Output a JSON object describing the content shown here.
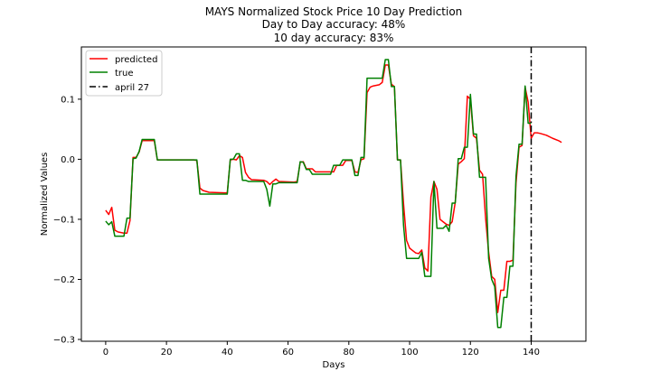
{
  "chart_data": {
    "type": "line",
    "title": [
      "MAYS Normalized Stock Price 10 Day Prediction",
      "Day to Day accuracy: 48%",
      "10 day accuracy: 83%"
    ],
    "xlabel": "Days",
    "ylabel": "Normalized Values",
    "xlim": [
      -8,
      158
    ],
    "ylim": [
      -0.303,
      0.187
    ],
    "xticks": [
      0,
      20,
      40,
      60,
      80,
      100,
      120,
      140
    ],
    "xtick_labels": [
      "0",
      "20",
      "40",
      "60",
      "80",
      "100",
      "120",
      "140"
    ],
    "yticks": [
      -0.3,
      -0.2,
      -0.1,
      0.0,
      0.1
    ],
    "ytick_labels": [
      "−0.3",
      "−0.2",
      "−0.1",
      "0.0",
      "0.1"
    ],
    "legend_position": "top-left",
    "series": [
      {
        "name": "predicted",
        "color": "#ff0000",
        "style": "solid",
        "points": [
          [
            0,
            -0.085
          ],
          [
            1,
            -0.092
          ],
          [
            2,
            -0.08
          ],
          [
            3,
            -0.118
          ],
          [
            4,
            -0.121
          ],
          [
            6,
            -0.123
          ],
          [
            7,
            -0.123
          ],
          [
            8,
            -0.102
          ],
          [
            9,
            0.003
          ],
          [
            10,
            0.003
          ],
          [
            11,
            0.012
          ],
          [
            12,
            0.031
          ],
          [
            16,
            0.031
          ],
          [
            17,
            -0.001
          ],
          [
            29,
            -0.001
          ],
          [
            30,
            -0.002
          ],
          [
            31,
            -0.048
          ],
          [
            32,
            -0.052
          ],
          [
            34,
            -0.055
          ],
          [
            39,
            -0.056
          ],
          [
            40,
            -0.056
          ],
          [
            41,
            -0.001
          ],
          [
            42,
            0.0
          ],
          [
            43,
            -0.001
          ],
          [
            44,
            0.006
          ],
          [
            45,
            0.003
          ],
          [
            46,
            -0.022
          ],
          [
            47,
            -0.03
          ],
          [
            48,
            -0.034
          ],
          [
            52,
            -0.035
          ],
          [
            53,
            -0.037
          ],
          [
            54,
            -0.042
          ],
          [
            55,
            -0.037
          ],
          [
            56,
            -0.033
          ],
          [
            57,
            -0.037
          ],
          [
            62,
            -0.038
          ],
          [
            63,
            -0.037
          ],
          [
            64,
            -0.005
          ],
          [
            65,
            -0.004
          ],
          [
            66,
            -0.016
          ],
          [
            68,
            -0.016
          ],
          [
            69,
            -0.021
          ],
          [
            75,
            -0.021
          ],
          [
            76,
            -0.01
          ],
          [
            78,
            -0.01
          ],
          [
            79,
            -0.002
          ],
          [
            81,
            -0.002
          ],
          [
            82,
            -0.021
          ],
          [
            83,
            -0.022
          ],
          [
            84,
            -0.001
          ],
          [
            85,
            0.001
          ],
          [
            86,
            0.111
          ],
          [
            87,
            0.12
          ],
          [
            88,
            0.122
          ],
          [
            90,
            0.124
          ],
          [
            91,
            0.128
          ],
          [
            92,
            0.157
          ],
          [
            93,
            0.157
          ],
          [
            94,
            0.125
          ],
          [
            95,
            0.121
          ],
          [
            96,
            -0.001
          ],
          [
            97,
            -0.001
          ],
          [
            98,
            -0.074
          ],
          [
            99,
            -0.135
          ],
          [
            100,
            -0.148
          ],
          [
            101,
            -0.152
          ],
          [
            102,
            -0.156
          ],
          [
            103,
            -0.157
          ],
          [
            104,
            -0.151
          ],
          [
            105,
            -0.181
          ],
          [
            106,
            -0.186
          ],
          [
            107,
            -0.063
          ],
          [
            108,
            -0.037
          ],
          [
            109,
            -0.05
          ],
          [
            110,
            -0.1
          ],
          [
            111,
            -0.104
          ],
          [
            112,
            -0.108
          ],
          [
            113,
            -0.11
          ],
          [
            114,
            -0.104
          ],
          [
            115,
            -0.072
          ],
          [
            116,
            -0.008
          ],
          [
            117,
            -0.004
          ],
          [
            118,
            0.001
          ],
          [
            119,
            0.105
          ],
          [
            120,
            0.1
          ],
          [
            121,
            0.039
          ],
          [
            122,
            0.035
          ],
          [
            123,
            -0.018
          ],
          [
            124,
            -0.025
          ],
          [
            125,
            -0.098
          ],
          [
            126,
            -0.155
          ],
          [
            127,
            -0.195
          ],
          [
            128,
            -0.2
          ],
          [
            129,
            -0.255
          ],
          [
            130,
            -0.218
          ],
          [
            131,
            -0.218
          ],
          [
            132,
            -0.17
          ],
          [
            133,
            -0.17
          ],
          [
            134,
            -0.168
          ],
          [
            135,
            -0.04
          ],
          [
            136,
            0.02
          ],
          [
            137,
            0.023
          ],
          [
            138,
            0.12
          ],
          [
            139,
            0.095
          ],
          [
            140,
            0.035
          ],
          [
            141,
            0.044
          ],
          [
            142,
            0.044
          ],
          [
            143,
            0.043
          ],
          [
            145,
            0.04
          ],
          [
            147,
            0.035
          ],
          [
            149,
            0.031
          ],
          [
            150,
            0.028
          ]
        ]
      },
      {
        "name": "true",
        "color": "#008000",
        "style": "solid",
        "points": [
          [
            0,
            -0.103
          ],
          [
            1,
            -0.109
          ],
          [
            2,
            -0.104
          ],
          [
            3,
            -0.128
          ],
          [
            6,
            -0.128
          ],
          [
            7,
            -0.098
          ],
          [
            8,
            -0.098
          ],
          [
            9,
            0.001
          ],
          [
            10,
            0.002
          ],
          [
            11,
            0.013
          ],
          [
            12,
            0.033
          ],
          [
            16,
            0.033
          ],
          [
            17,
            -0.001
          ],
          [
            30,
            -0.001
          ],
          [
            31,
            -0.058
          ],
          [
            40,
            -0.058
          ],
          [
            41,
            0.0
          ],
          [
            42,
            0.0
          ],
          [
            43,
            0.009
          ],
          [
            44,
            0.009
          ],
          [
            45,
            -0.035
          ],
          [
            46,
            -0.035
          ],
          [
            47,
            -0.037
          ],
          [
            52,
            -0.037
          ],
          [
            53,
            -0.05
          ],
          [
            54,
            -0.078
          ],
          [
            55,
            -0.041
          ],
          [
            56,
            -0.041
          ],
          [
            57,
            -0.039
          ],
          [
            62,
            -0.039
          ],
          [
            63,
            -0.039
          ],
          [
            64,
            -0.004
          ],
          [
            65,
            -0.005
          ],
          [
            66,
            -0.017
          ],
          [
            67,
            -0.017
          ],
          [
            68,
            -0.025
          ],
          [
            74,
            -0.025
          ],
          [
            75,
            -0.01
          ],
          [
            77,
            -0.01
          ],
          [
            78,
            -0.001
          ],
          [
            81,
            -0.001
          ],
          [
            82,
            -0.027
          ],
          [
            83,
            -0.027
          ],
          [
            84,
            0.003
          ],
          [
            85,
            0.003
          ],
          [
            86,
            0.135
          ],
          [
            91,
            0.135
          ],
          [
            92,
            0.166
          ],
          [
            93,
            0.166
          ],
          [
            94,
            0.121
          ],
          [
            95,
            0.121
          ],
          [
            96,
            -0.001
          ],
          [
            97,
            -0.001
          ],
          [
            98,
            -0.11
          ],
          [
            99,
            -0.165
          ],
          [
            103,
            -0.165
          ],
          [
            104,
            -0.155
          ],
          [
            105,
            -0.195
          ],
          [
            107,
            -0.195
          ],
          [
            108,
            -0.037
          ],
          [
            109,
            -0.115
          ],
          [
            111,
            -0.115
          ],
          [
            112,
            -0.11
          ],
          [
            113,
            -0.12
          ],
          [
            114,
            -0.073
          ],
          [
            115,
            -0.073
          ],
          [
            116,
            0.001
          ],
          [
            117,
            0.001
          ],
          [
            118,
            0.02
          ],
          [
            119,
            0.02
          ],
          [
            120,
            0.108
          ],
          [
            121,
            0.042
          ],
          [
            122,
            0.042
          ],
          [
            123,
            -0.03
          ],
          [
            125,
            -0.03
          ],
          [
            126,
            -0.165
          ],
          [
            127,
            -0.2
          ],
          [
            128,
            -0.212
          ],
          [
            129,
            -0.28
          ],
          [
            130,
            -0.28
          ],
          [
            131,
            -0.23
          ],
          [
            132,
            -0.23
          ],
          [
            133,
            -0.178
          ],
          [
            134,
            -0.178
          ],
          [
            135,
            -0.028
          ],
          [
            136,
            0.025
          ],
          [
            137,
            0.025
          ],
          [
            138,
            0.122
          ],
          [
            139,
            0.06
          ],
          [
            140,
            0.06
          ]
        ]
      },
      {
        "name": "april 27",
        "color": "#000000",
        "style": "dashdot",
        "vertical_x": 140
      }
    ]
  }
}
